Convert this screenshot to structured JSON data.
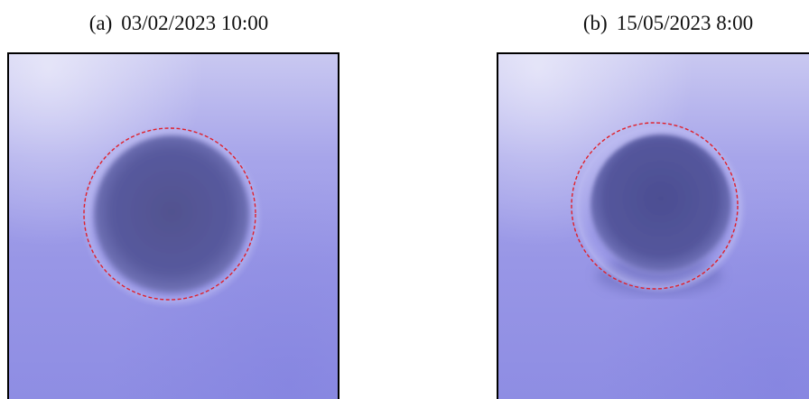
{
  "panels": [
    {
      "letter": "(a)",
      "timestamp": "03/02/2023 10:00",
      "overlay_color": "#e0202a",
      "spot_color": "#56579a"
    },
    {
      "letter": "(b)",
      "timestamp": "15/05/2023 8:00",
      "overlay_color": "#e0202a",
      "spot_color": "#4f5198"
    }
  ]
}
